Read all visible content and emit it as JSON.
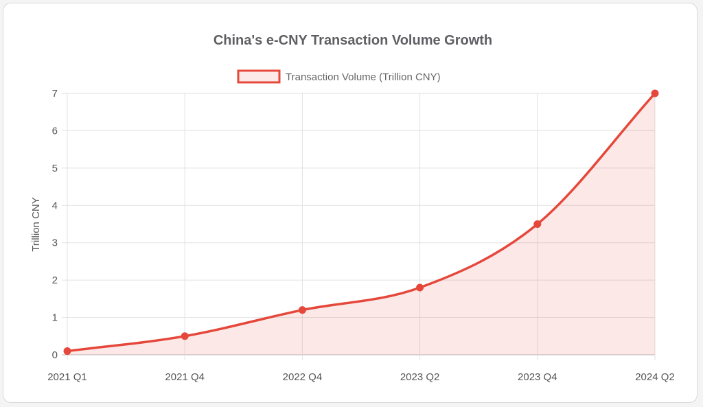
{
  "chart_data": {
    "type": "area",
    "title": "China's e-CNY Transaction Volume Growth",
    "xlabel": "",
    "ylabel": "Trillion CNY",
    "categories": [
      "2021 Q1",
      "2021 Q4",
      "2022 Q4",
      "2023 Q2",
      "2023 Q4",
      "2024 Q2"
    ],
    "series": [
      {
        "name": "Transaction Volume (Trillion CNY)",
        "values": [
          0.1,
          0.5,
          1.2,
          1.8,
          3.5,
          7
        ]
      }
    ],
    "ylim": [
      0,
      7
    ],
    "yticks": [
      "0",
      "1",
      "2",
      "3",
      "4",
      "5",
      "6",
      "7"
    ],
    "grid": true,
    "legend_position": "top",
    "colors": {
      "line": "#e5483b",
      "fill": "rgba(229,72,59,0.12)"
    }
  }
}
